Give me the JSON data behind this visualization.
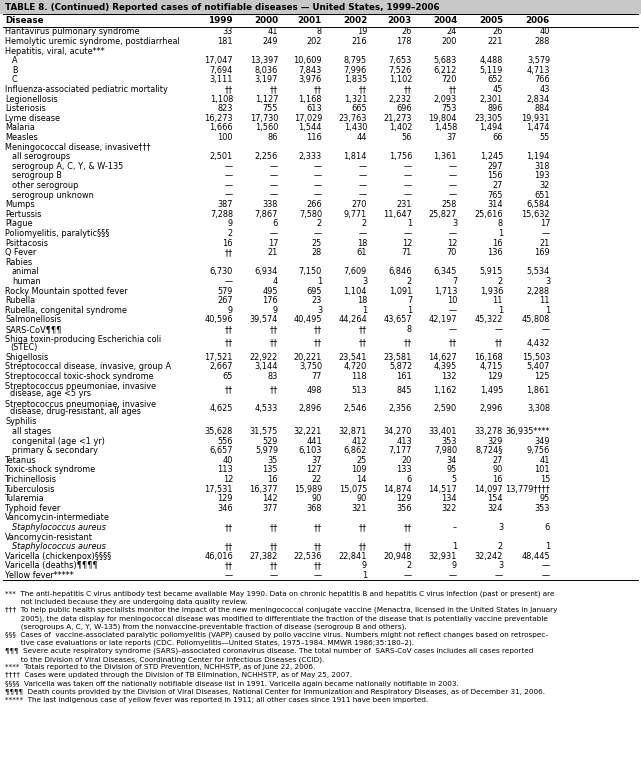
{
  "title": "TABLE 8. (Continued) Reported cases of notifiable diseases — United States, 1999–2006",
  "headers": [
    "Disease",
    "1999",
    "2000",
    "2001",
    "2002",
    "2003",
    "2004",
    "2005",
    "2006"
  ],
  "rows": [
    {
      "disease": "Hantavirus pulmonary syndrome",
      "indent": 0,
      "header_only": false,
      "italic": false,
      "values": [
        "33",
        "41",
        "8",
        "19",
        "26",
        "24",
        "26",
        "40"
      ]
    },
    {
      "disease": "Hemolytic uremic syndrome, postdiarrheal",
      "indent": 0,
      "header_only": false,
      "italic": false,
      "values": [
        "181",
        "249",
        "202",
        "216",
        "178",
        "200",
        "221",
        "288"
      ]
    },
    {
      "disease": "Hepatitis, viral, acute***",
      "indent": 0,
      "header_only": true,
      "italic": false,
      "values": [
        "",
        "",
        "",
        "",
        "",
        "",
        "",
        ""
      ]
    },
    {
      "disease": "A",
      "indent": 1,
      "header_only": false,
      "italic": false,
      "values": [
        "17,047",
        "13,397",
        "10,609",
        "8,795",
        "7,653",
        "5,683",
        "4,488",
        "3,579"
      ]
    },
    {
      "disease": "B",
      "indent": 1,
      "header_only": false,
      "italic": false,
      "values": [
        "7,694",
        "8,036",
        "7,843",
        "7,996",
        "7,526",
        "6,212",
        "5,119",
        "4,713"
      ]
    },
    {
      "disease": "C",
      "indent": 1,
      "header_only": false,
      "italic": false,
      "values": [
        "3,111",
        "3,197",
        "3,976",
        "1,835",
        "1,102",
        "720",
        "652",
        "766"
      ]
    },
    {
      "disease": "Influenza-associated pediatric mortality",
      "indent": 0,
      "header_only": false,
      "italic": false,
      "values": [
        "††",
        "††",
        "††",
        "††",
        "††",
        "††",
        "45",
        "43"
      ]
    },
    {
      "disease": "Legionellosis",
      "indent": 0,
      "header_only": false,
      "italic": false,
      "values": [
        "1,108",
        "1,127",
        "1,168",
        "1,321",
        "2,232",
        "2,093",
        "2,301",
        "2,834"
      ]
    },
    {
      "disease": "Listeriosis",
      "indent": 0,
      "header_only": false,
      "italic": false,
      "values": [
        "823",
        "755",
        "613",
        "665",
        "696",
        "753",
        "896",
        "884"
      ]
    },
    {
      "disease": "Lyme disease",
      "indent": 0,
      "header_only": false,
      "italic": false,
      "values": [
        "16,273",
        "17,730",
        "17,029",
        "23,763",
        "21,273",
        "19,804",
        "23,305",
        "19,931"
      ]
    },
    {
      "disease": "Malaria",
      "indent": 0,
      "header_only": false,
      "italic": false,
      "values": [
        "1,666",
        "1,560",
        "1,544",
        "1,430",
        "1,402",
        "1,458",
        "1,494",
        "1,474"
      ]
    },
    {
      "disease": "Measles",
      "indent": 0,
      "header_only": false,
      "italic": false,
      "values": [
        "100",
        "86",
        "116",
        "44",
        "56",
        "37",
        "66",
        "55"
      ]
    },
    {
      "disease": "Meningococcal disease, invasive†††",
      "indent": 0,
      "header_only": true,
      "italic": false,
      "values": [
        "",
        "",
        "",
        "",
        "",
        "",
        "",
        ""
      ]
    },
    {
      "disease": "all serogroups",
      "indent": 1,
      "header_only": false,
      "italic": false,
      "values": [
        "2,501",
        "2,256",
        "2,333",
        "1,814",
        "1,756",
        "1,361",
        "1,245",
        "1,194"
      ]
    },
    {
      "disease": "serogroup A, C, Y, & W-135",
      "indent": 1,
      "header_only": false,
      "italic": false,
      "values": [
        "—",
        "—",
        "—",
        "—",
        "—",
        "—",
        "297",
        "318"
      ]
    },
    {
      "disease": "serogroup B",
      "indent": 1,
      "header_only": false,
      "italic": false,
      "values": [
        "—",
        "—",
        "—",
        "—",
        "—",
        "—",
        "156",
        "193"
      ]
    },
    {
      "disease": "other serogroup",
      "indent": 1,
      "header_only": false,
      "italic": false,
      "values": [
        "—",
        "—",
        "—",
        "—",
        "—",
        "—",
        "27",
        "32"
      ]
    },
    {
      "disease": "serogroup unknown",
      "indent": 1,
      "header_only": false,
      "italic": false,
      "values": [
        "—",
        "—",
        "—",
        "—",
        "—",
        "—",
        "765",
        "651"
      ]
    },
    {
      "disease": "Mumps",
      "indent": 0,
      "header_only": false,
      "italic": false,
      "values": [
        "387",
        "338",
        "266",
        "270",
        "231",
        "258",
        "314",
        "6,584"
      ]
    },
    {
      "disease": "Pertussis",
      "indent": 0,
      "header_only": false,
      "italic": false,
      "values": [
        "7,288",
        "7,867",
        "7,580",
        "9,771",
        "11,647",
        "25,827",
        "25,616",
        "15,632"
      ]
    },
    {
      "disease": "Plague",
      "indent": 0,
      "header_only": false,
      "italic": false,
      "values": [
        "9",
        "6",
        "2",
        "2",
        "1",
        "3",
        "8",
        "17"
      ]
    },
    {
      "disease": "Poliomyelitis, paralytic§§§",
      "indent": 0,
      "header_only": false,
      "italic": false,
      "values": [
        "2",
        "—",
        "—",
        "—",
        "—",
        "—",
        "1",
        "—"
      ]
    },
    {
      "disease": "Psittacosis",
      "indent": 0,
      "header_only": false,
      "italic": false,
      "values": [
        "16",
        "17",
        "25",
        "18",
        "12",
        "12",
        "16",
        "21"
      ]
    },
    {
      "disease": "Q Fever",
      "indent": 0,
      "header_only": false,
      "italic": false,
      "values": [
        "††",
        "21",
        "28",
        "61",
        "71",
        "70",
        "136",
        "169"
      ]
    },
    {
      "disease": "Rabies",
      "indent": 0,
      "header_only": true,
      "italic": false,
      "values": [
        "",
        "",
        "",
        "",
        "",
        "",
        "",
        ""
      ]
    },
    {
      "disease": "animal",
      "indent": 1,
      "header_only": false,
      "italic": false,
      "values": [
        "6,730",
        "6,934",
        "7,150",
        "7,609",
        "6,846",
        "6,345",
        "5,915",
        "5,534"
      ]
    },
    {
      "disease": "human",
      "indent": 1,
      "header_only": false,
      "italic": false,
      "values": [
        "—",
        "4",
        "1",
        "3",
        "2",
        "7",
        "2",
        "3"
      ]
    },
    {
      "disease": "Rocky Mountain spotted fever",
      "indent": 0,
      "header_only": false,
      "italic": false,
      "values": [
        "579",
        "495",
        "695",
        "1,104",
        "1,091",
        "1,713",
        "1,936",
        "2,288"
      ]
    },
    {
      "disease": "Rubella",
      "indent": 0,
      "header_only": false,
      "italic": false,
      "values": [
        "267",
        "176",
        "23",
        "18",
        "7",
        "10",
        "11",
        "11"
      ]
    },
    {
      "disease": "Rubella, congenital syndrome",
      "indent": 0,
      "header_only": false,
      "italic": false,
      "values": [
        "9",
        "9",
        "3",
        "1",
        "1",
        "—",
        "1",
        "1"
      ]
    },
    {
      "disease": "Salmonellosis",
      "indent": 0,
      "header_only": false,
      "italic": false,
      "values": [
        "40,596",
        "39,574",
        "40,495",
        "44,264",
        "43,657",
        "42,197",
        "45,322",
        "45,808"
      ]
    },
    {
      "disease": "SARS-CoV¶¶¶",
      "indent": 0,
      "header_only": false,
      "italic": false,
      "values": [
        "††",
        "††",
        "††",
        "††",
        "8",
        "—",
        "—",
        "—"
      ]
    },
    {
      "disease": "Shiga toxin-producing Escherichia coli",
      "indent": 0,
      "header_only": false,
      "italic": false,
      "line2": "(STEC)",
      "values": [
        "††",
        "††",
        "††",
        "††",
        "††",
        "††",
        "††",
        "4,432"
      ]
    },
    {
      "disease": "Shigellosis",
      "indent": 0,
      "header_only": false,
      "italic": false,
      "values": [
        "17,521",
        "22,922",
        "20,221",
        "23,541",
        "23,581",
        "14,627",
        "16,168",
        "15,503"
      ]
    },
    {
      "disease": "Streptococcal disease, invasive, group A",
      "indent": 0,
      "header_only": false,
      "italic": false,
      "values": [
        "2,667",
        "3,144",
        "3,750",
        "4,720",
        "5,872",
        "4,395",
        "4,715",
        "5,407"
      ]
    },
    {
      "disease": "Streptococcal toxic-shock syndrome",
      "indent": 0,
      "header_only": false,
      "italic": false,
      "values": [
        "65",
        "83",
        "77",
        "118",
        "161",
        "132",
        "129",
        "125"
      ]
    },
    {
      "disease": "Streptococcus pneumoniae, invasive",
      "indent": 0,
      "header_only": false,
      "italic": false,
      "line2": "disease, age <5 yrs",
      "values": [
        "††",
        "††",
        "498",
        "513",
        "845",
        "1,162",
        "1,495",
        "1,861"
      ]
    },
    {
      "disease": "Streptococcus pneumoniae, invasive",
      "indent": 0,
      "header_only": false,
      "italic": false,
      "line2": "disease, drug-resistant, all ages",
      "values": [
        "4,625",
        "4,533",
        "2,896",
        "2,546",
        "2,356",
        "2,590",
        "2,996",
        "3,308"
      ]
    },
    {
      "disease": "Syphilis",
      "indent": 0,
      "header_only": true,
      "italic": false,
      "values": [
        "",
        "",
        "",
        "",
        "",
        "",
        "",
        ""
      ]
    },
    {
      "disease": "all stages",
      "indent": 1,
      "header_only": false,
      "italic": false,
      "values": [
        "35,628",
        "31,575",
        "32,221",
        "32,871",
        "34,270",
        "33,401",
        "33,278",
        "36,935****"
      ]
    },
    {
      "disease": "congenital (age <1 yr)",
      "indent": 1,
      "header_only": false,
      "italic": false,
      "values": [
        "556",
        "529",
        "441",
        "412",
        "413",
        "353",
        "329",
        "349"
      ]
    },
    {
      "disease": "primary & secondary",
      "indent": 1,
      "header_only": false,
      "italic": false,
      "values": [
        "6,657",
        "5,979",
        "6,103",
        "6,862",
        "7,177",
        "7,980",
        "8,724§",
        "9,756"
      ]
    },
    {
      "disease": "Tetanus",
      "indent": 0,
      "header_only": false,
      "italic": false,
      "values": [
        "40",
        "35",
        "37",
        "25",
        "20",
        "34",
        "27",
        "41"
      ]
    },
    {
      "disease": "Toxic-shock syndrome",
      "indent": 0,
      "header_only": false,
      "italic": false,
      "values": [
        "113",
        "135",
        "127",
        "109",
        "133",
        "95",
        "90",
        "101"
      ]
    },
    {
      "disease": "Trichinellosis",
      "indent": 0,
      "header_only": false,
      "italic": false,
      "values": [
        "12",
        "16",
        "22",
        "14",
        "6",
        "5",
        "16",
        "15"
      ]
    },
    {
      "disease": "Tuberculosis",
      "indent": 0,
      "header_only": false,
      "italic": false,
      "values": [
        "17,531",
        "16,377",
        "15,989",
        "15,075",
        "14,874",
        "14,517",
        "14,097",
        "13,779††††"
      ]
    },
    {
      "disease": "Tularemia",
      "indent": 0,
      "header_only": false,
      "italic": false,
      "values": [
        "129",
        "142",
        "90",
        "90",
        "129",
        "134",
        "154",
        "95"
      ]
    },
    {
      "disease": "Typhoid fever",
      "indent": 0,
      "header_only": false,
      "italic": false,
      "values": [
        "346",
        "377",
        "368",
        "321",
        "356",
        "322",
        "324",
        "353"
      ]
    },
    {
      "disease": "Vancomycin-intermediate",
      "indent": 0,
      "header_only": true,
      "italic": false,
      "values": [
        "",
        "",
        "",
        "",
        "",
        "",
        "",
        ""
      ]
    },
    {
      "disease": "Staphylococcus aureus",
      "indent": 1,
      "header_only": false,
      "italic": true,
      "values": [
        "††",
        "††",
        "††",
        "††",
        "††",
        "–",
        "3",
        "6"
      ]
    },
    {
      "disease": "Vancomycin-resistant",
      "indent": 0,
      "header_only": true,
      "italic": false,
      "values": [
        "",
        "",
        "",
        "",
        "",
        "",
        "",
        ""
      ]
    },
    {
      "disease": "Staphylococcus aureus",
      "indent": 1,
      "header_only": false,
      "italic": true,
      "values": [
        "††",
        "††",
        "††",
        "††",
        "††",
        "1",
        "2",
        "1"
      ]
    },
    {
      "disease": "Varicella (chickenpox)§§§§",
      "indent": 0,
      "header_only": false,
      "italic": false,
      "values": [
        "46,016",
        "27,382",
        "22,536",
        "22,841",
        "20,948",
        "32,931",
        "32,242",
        "48,445"
      ]
    },
    {
      "disease": "Varicella (deaths)¶¶¶¶",
      "indent": 0,
      "header_only": false,
      "italic": false,
      "values": [
        "††",
        "††",
        "††",
        "9",
        "2",
        "9",
        "3",
        "—"
      ]
    },
    {
      "disease": "Yellow fever*****",
      "indent": 0,
      "header_only": false,
      "italic": false,
      "values": [
        "—",
        "—",
        "—",
        "1",
        "—",
        "—",
        "—",
        "—"
      ]
    }
  ],
  "footnotes": [
    {
      "text": "***  The anti-hepatitis C virus antibody test became available May 1990. Data on chronic hepatitis B and hepatitis C virus infection (past or present) are",
      "indent": 0
    },
    {
      "text": "       not included because they are undergoing data quality review.",
      "indent": 0
    },
    {
      "text": "†††  To help public health specialists monitor the impact of the new meningococcal conjugate vaccine (Menactra, licensed in the United States in January",
      "indent": 0
    },
    {
      "text": "       2005), the data display for meningococcal disease was modified to differentiate the fraction of the disease that is potentially vaccine preventable",
      "indent": 0
    },
    {
      "text": "       (serogroups A, C, Y, W-135) from the nonvaccine-preventable fraction of disease (serogroup B and others).",
      "indent": 0
    },
    {
      "text": "§§§  Cases of  vaccine-associated paralytic poliomyelitis (VAPP) caused by polio vaccine virus. Numbers might not reflect changes based on retrospec-",
      "indent": 0
    },
    {
      "text": "       tive case evaluations or late reports (CDC. Poliomyelitis—United States, 1975–1984. MMWR 1986;35:180–2).",
      "indent": 0
    },
    {
      "text": "¶¶¶  Severe acute respiratory syndrome (SARS)–associated coronavirus disease. The total number of  SARS-CoV cases includes all cases reported",
      "indent": 0
    },
    {
      "text": "       to the Division of Viral Diseases, Coordinating Center for Infectious Diseases (CCID).",
      "indent": 0
    },
    {
      "text": "****  Totals reported to the Division of STD Prevention, NCHHSTP, as of June 22, 2006.",
      "indent": 0
    },
    {
      "text": "††††  Cases were updated through the Division of TB Elimination, NCHHSTP, as of May 25, 2007.",
      "indent": 0
    },
    {
      "text": "§§§§  Varicella was taken off the nationally notifiable disease list in 1991. Varicella again became nationally notifiable in 2003.",
      "indent": 0
    },
    {
      "text": "¶¶¶¶  Death counts provided by the Division of Viral Diseases, National Center for Immunization and Respiratory Diseases, as of December 31, 2006.",
      "indent": 0
    },
    {
      "text": "*****  The last indigenous case of yellow fever was reported in 1911; all other cases since 1911 have been imported.",
      "indent": 0
    }
  ]
}
